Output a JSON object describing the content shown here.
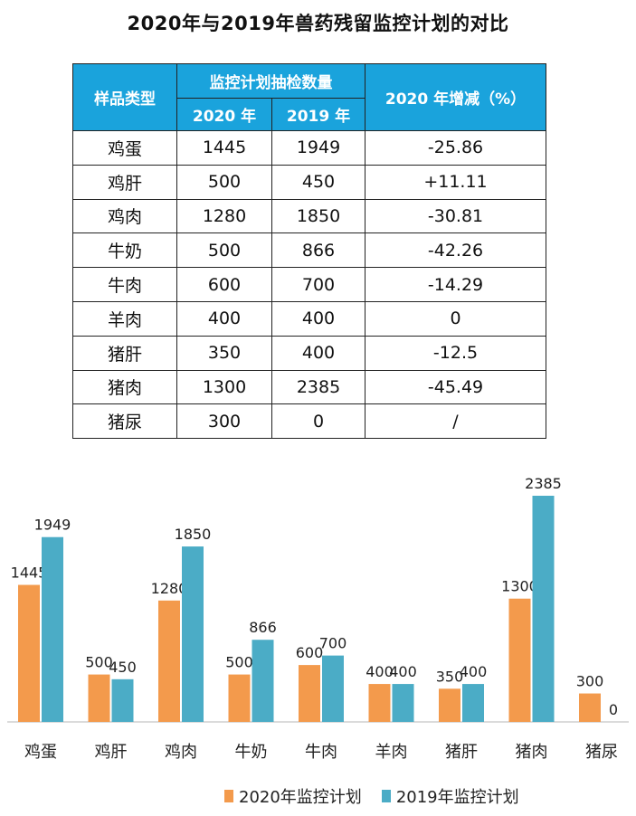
{
  "title": "2020年与2019年兽药残留监控计划的对比",
  "table": {
    "header_type": "样品类型",
    "header_group": "监控计划抽检数量",
    "header_2020": "2020 年",
    "header_2019": "2019 年",
    "header_change": "2020 年增减（%）",
    "rows": [
      {
        "type": "鸡蛋",
        "y2020": "1445",
        "y2019": "1949",
        "change": "-25.86"
      },
      {
        "type": "鸡肝",
        "y2020": "500",
        "y2019": "450",
        "change": "+11.11"
      },
      {
        "type": "鸡肉",
        "y2020": "1280",
        "y2019": "1850",
        "change": "-30.81"
      },
      {
        "type": "牛奶",
        "y2020": "500",
        "y2019": "866",
        "change": "-42.26"
      },
      {
        "type": "牛肉",
        "y2020": "600",
        "y2019": "700",
        "change": "-14.29"
      },
      {
        "type": "羊肉",
        "y2020": "400",
        "y2019": "400",
        "change": "0"
      },
      {
        "type": "猪肝",
        "y2020": "350",
        "y2019": "400",
        "change": "-12.5"
      },
      {
        "type": "猪肉",
        "y2020": "1300",
        "y2019": "2385",
        "change": "-45.49"
      },
      {
        "type": "猪尿",
        "y2020": "300",
        "y2019": "0",
        "change": "/"
      }
    ]
  },
  "colors": {
    "header_bg": "#1aa3dc",
    "series_2020": "#f39a4c",
    "series_2019": "#4bacc6"
  },
  "chart_data": {
    "type": "bar",
    "categories": [
      "鸡蛋",
      "鸡肝",
      "鸡肉",
      "牛奶",
      "牛肉",
      "羊肉",
      "猪肝",
      "猪肉",
      "猪尿"
    ],
    "series": [
      {
        "name": "2020年监控计划",
        "values": [
          1445,
          500,
          1280,
          500,
          600,
          400,
          350,
          1300,
          300
        ]
      },
      {
        "name": "2019年监控计划",
        "values": [
          1949,
          450,
          1850,
          866,
          700,
          400,
          400,
          2385,
          0
        ]
      }
    ],
    "ylim": [
      0,
      2385
    ],
    "grid": false,
    "legend_position": "bottom"
  }
}
